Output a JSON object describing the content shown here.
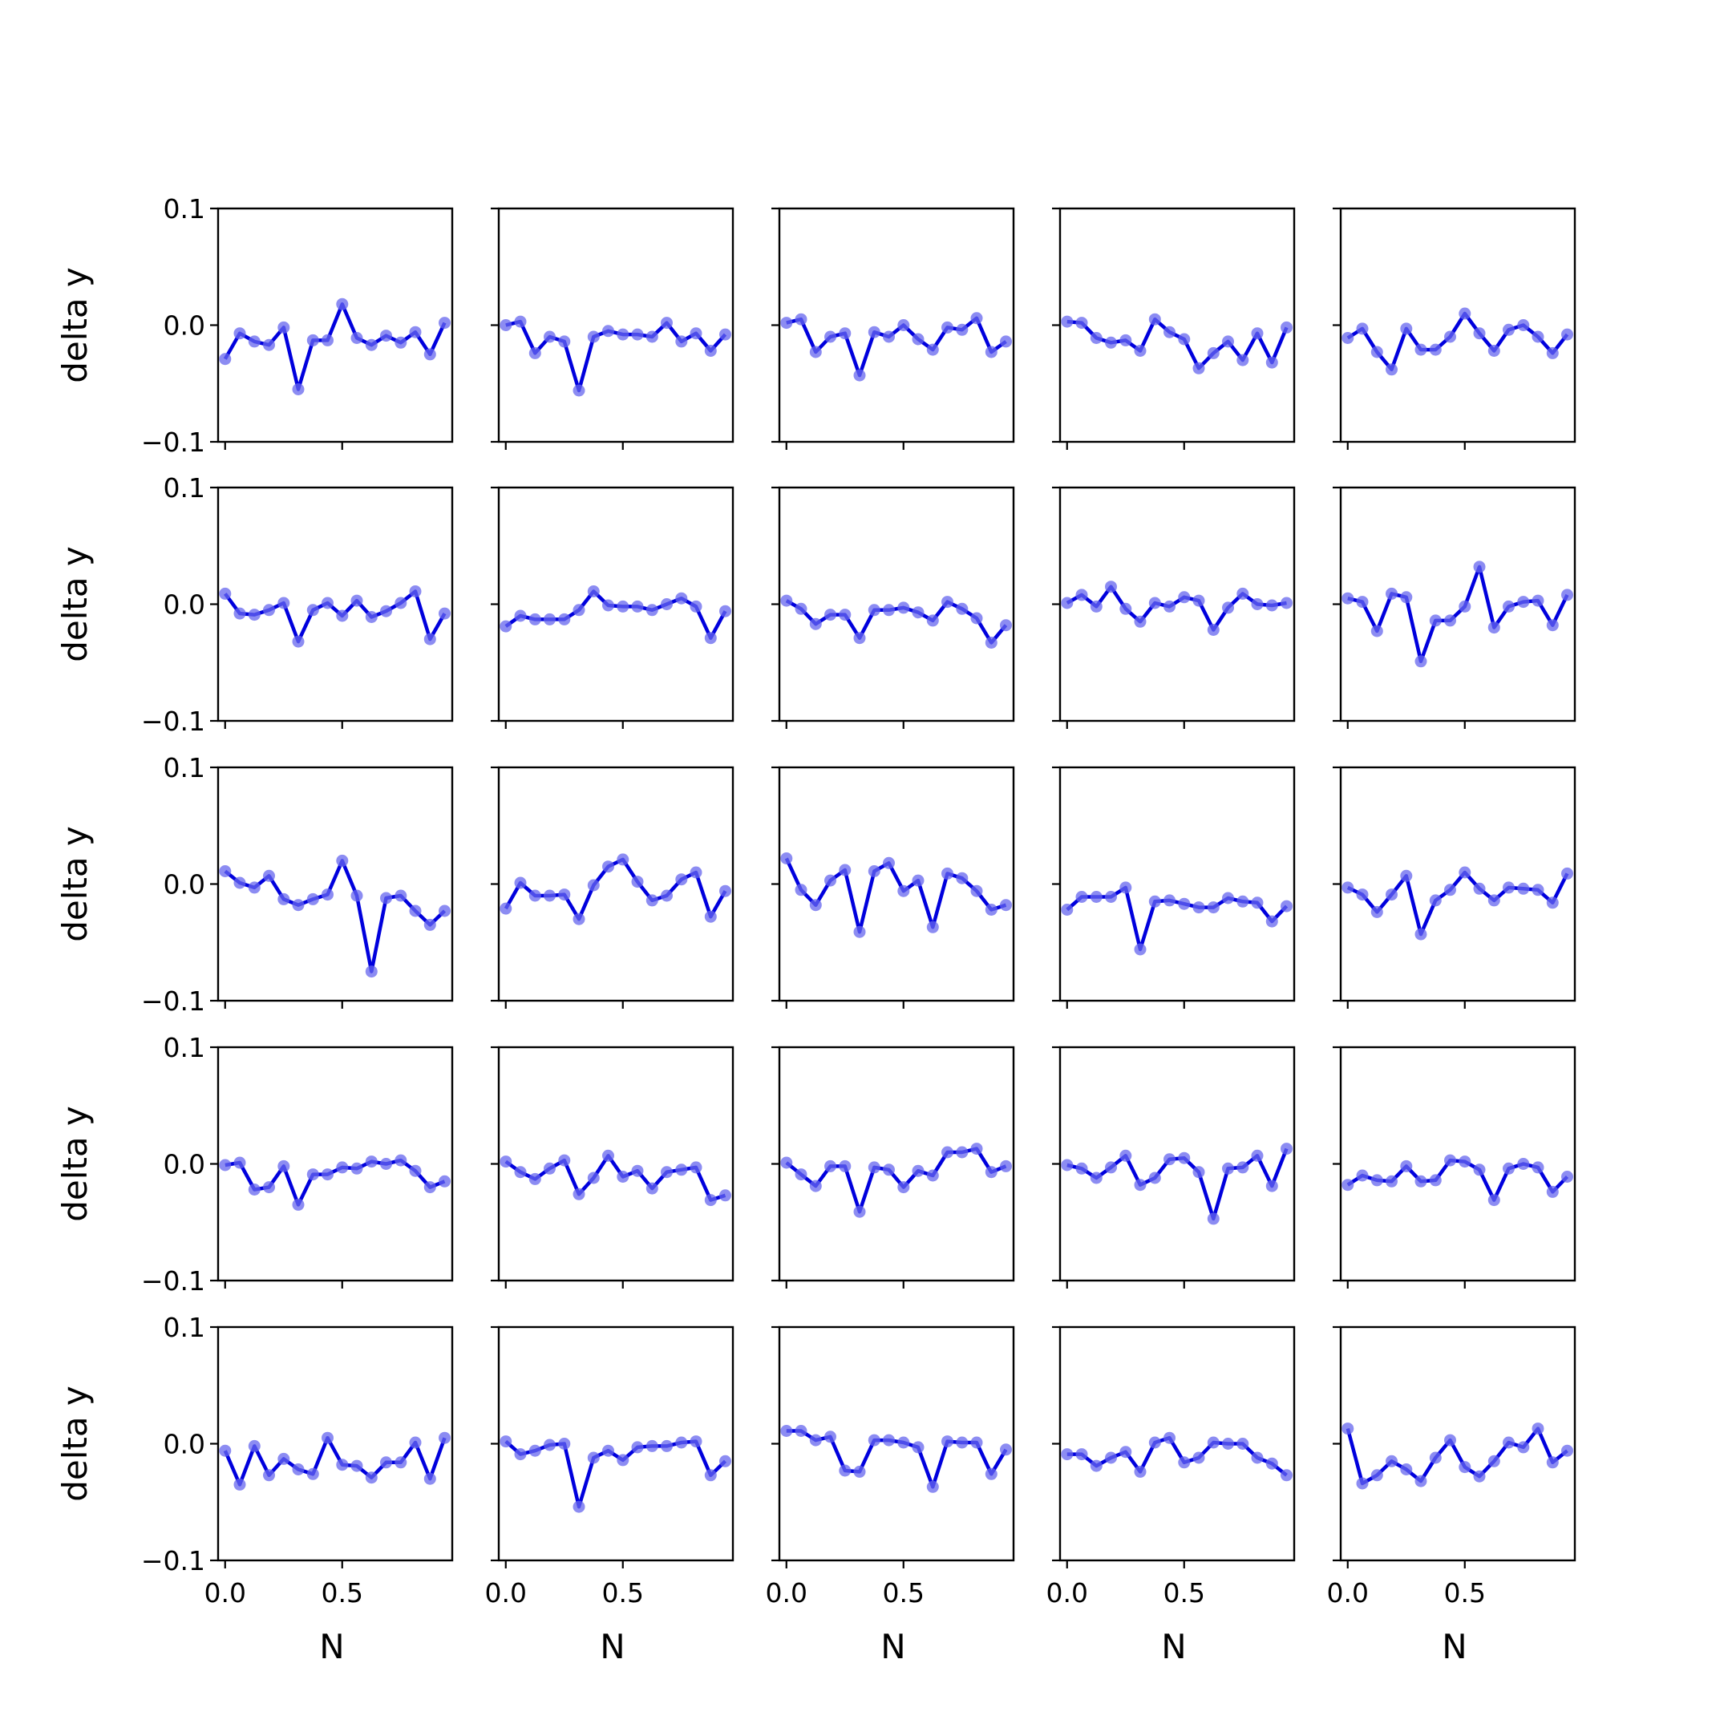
{
  "chart_data": {
    "type": "line",
    "layout": {
      "rows": 5,
      "cols": 5
    },
    "colors": {
      "line": "#0000dd",
      "marker": "#6666ee"
    },
    "markers": true,
    "grid": false,
    "xlabel": "N",
    "ylabel": "delta y",
    "xlim": [
      -0.03,
      0.97
    ],
    "ylim": [
      -0.1,
      0.1
    ],
    "xticks": [
      0.0,
      0.5
    ],
    "xtick_labels": [
      "0.0",
      "0.5"
    ],
    "yticks": [
      0.1,
      0.0,
      -0.1
    ],
    "ytick_labels": [
      "0.1",
      "0.0",
      "−0.1"
    ],
    "x": [
      0.0,
      0.0625,
      0.125,
      0.1875,
      0.25,
      0.3125,
      0.375,
      0.4375,
      0.5,
      0.5625,
      0.625,
      0.6875,
      0.75,
      0.8125,
      0.875,
      0.9375
    ],
    "panels": [
      {
        "values": [
          -0.029,
          -0.007,
          -0.014,
          -0.017,
          -0.002,
          -0.055,
          -0.013,
          -0.013,
          0.018,
          -0.011,
          -0.017,
          -0.009,
          -0.015,
          -0.006,
          -0.025,
          0.002
        ]
      },
      {
        "values": [
          0.0,
          0.003,
          -0.024,
          -0.01,
          -0.014,
          -0.056,
          -0.01,
          -0.005,
          -0.008,
          -0.008,
          -0.01,
          0.002,
          -0.014,
          -0.007,
          -0.022,
          -0.008
        ]
      },
      {
        "values": [
          0.002,
          0.005,
          -0.023,
          -0.01,
          -0.007,
          -0.043,
          -0.006,
          -0.01,
          0.0,
          -0.012,
          -0.021,
          -0.002,
          -0.004,
          0.006,
          -0.023,
          -0.014
        ]
      },
      {
        "values": [
          0.003,
          0.002,
          -0.011,
          -0.015,
          -0.013,
          -0.022,
          0.005,
          -0.006,
          -0.012,
          -0.037,
          -0.024,
          -0.014,
          -0.03,
          -0.007,
          -0.032,
          -0.002
        ]
      },
      {
        "values": [
          -0.011,
          -0.003,
          -0.023,
          -0.038,
          -0.003,
          -0.021,
          -0.021,
          -0.01,
          0.01,
          -0.007,
          -0.022,
          -0.004,
          0.0,
          -0.01,
          -0.024,
          -0.008
        ]
      },
      {
        "values": [
          0.009,
          -0.008,
          -0.009,
          -0.005,
          0.001,
          -0.032,
          -0.005,
          0.001,
          -0.01,
          0.003,
          -0.011,
          -0.006,
          0.001,
          0.011,
          -0.03,
          -0.008
        ]
      },
      {
        "values": [
          -0.019,
          -0.01,
          -0.013,
          -0.013,
          -0.013,
          -0.005,
          0.011,
          -0.001,
          -0.002,
          -0.002,
          -0.005,
          0.0,
          0.005,
          -0.002,
          -0.029,
          -0.006
        ]
      },
      {
        "values": [
          0.003,
          -0.004,
          -0.017,
          -0.009,
          -0.009,
          -0.029,
          -0.005,
          -0.005,
          -0.003,
          -0.007,
          -0.014,
          0.002,
          -0.004,
          -0.012,
          -0.033,
          -0.018
        ]
      },
      {
        "values": [
          0.001,
          0.008,
          -0.002,
          0.015,
          -0.004,
          -0.015,
          0.001,
          -0.002,
          0.006,
          0.003,
          -0.022,
          -0.003,
          0.009,
          0.0,
          -0.001,
          0.001
        ]
      },
      {
        "values": [
          0.005,
          0.002,
          -0.023,
          0.009,
          0.006,
          -0.049,
          -0.014,
          -0.014,
          -0.002,
          0.032,
          -0.02,
          -0.002,
          0.002,
          0.003,
          -0.018,
          0.008
        ]
      },
      {
        "values": [
          0.011,
          0.001,
          -0.003,
          0.007,
          -0.013,
          -0.018,
          -0.013,
          -0.009,
          0.02,
          -0.01,
          -0.075,
          -0.012,
          -0.01,
          -0.023,
          -0.035,
          -0.023
        ]
      },
      {
        "values": [
          -0.021,
          0.001,
          -0.01,
          -0.01,
          -0.009,
          -0.03,
          -0.001,
          0.015,
          0.021,
          0.002,
          -0.014,
          -0.01,
          0.004,
          0.01,
          -0.028,
          -0.006
        ]
      },
      {
        "values": [
          0.022,
          -0.005,
          -0.018,
          0.003,
          0.012,
          -0.041,
          0.011,
          0.018,
          -0.006,
          0.003,
          -0.037,
          0.009,
          0.005,
          -0.006,
          -0.022,
          -0.018
        ]
      },
      {
        "values": [
          -0.022,
          -0.011,
          -0.011,
          -0.011,
          -0.003,
          -0.056,
          -0.015,
          -0.014,
          -0.017,
          -0.02,
          -0.02,
          -0.012,
          -0.015,
          -0.016,
          -0.032,
          -0.019
        ]
      },
      {
        "values": [
          -0.003,
          -0.009,
          -0.024,
          -0.009,
          0.007,
          -0.043,
          -0.014,
          -0.005,
          0.01,
          -0.004,
          -0.014,
          -0.003,
          -0.004,
          -0.005,
          -0.016,
          0.009
        ]
      },
      {
        "values": [
          -0.001,
          0.001,
          -0.022,
          -0.02,
          -0.002,
          -0.035,
          -0.009,
          -0.009,
          -0.003,
          -0.004,
          0.002,
          0.0,
          0.003,
          -0.006,
          -0.02,
          -0.015
        ]
      },
      {
        "values": [
          0.002,
          -0.007,
          -0.013,
          -0.004,
          0.003,
          -0.026,
          -0.012,
          0.007,
          -0.011,
          -0.006,
          -0.021,
          -0.007,
          -0.005,
          -0.003,
          -0.031,
          -0.027
        ]
      },
      {
        "values": [
          0.001,
          -0.009,
          -0.019,
          -0.002,
          -0.002,
          -0.041,
          -0.003,
          -0.005,
          -0.02,
          -0.006,
          -0.01,
          0.01,
          0.01,
          0.013,
          -0.007,
          -0.002
        ]
      },
      {
        "values": [
          -0.001,
          -0.004,
          -0.012,
          -0.003,
          0.007,
          -0.018,
          -0.012,
          0.004,
          0.005,
          -0.007,
          -0.047,
          -0.004,
          -0.003,
          0.007,
          -0.019,
          0.013
        ]
      },
      {
        "values": [
          -0.018,
          -0.01,
          -0.014,
          -0.015,
          -0.002,
          -0.015,
          -0.014,
          0.003,
          0.002,
          -0.005,
          -0.031,
          -0.004,
          0.0,
          -0.003,
          -0.024,
          -0.011
        ]
      },
      {
        "values": [
          -0.006,
          -0.035,
          -0.002,
          -0.027,
          -0.013,
          -0.022,
          -0.026,
          0.005,
          -0.018,
          -0.019,
          -0.029,
          -0.016,
          -0.016,
          0.001,
          -0.03,
          0.005
        ]
      },
      {
        "values": [
          0.002,
          -0.009,
          -0.006,
          -0.001,
          0.0,
          -0.054,
          -0.012,
          -0.006,
          -0.014,
          -0.003,
          -0.002,
          -0.002,
          0.001,
          0.002,
          -0.027,
          -0.015
        ]
      },
      {
        "values": [
          0.011,
          0.011,
          0.003,
          0.006,
          -0.023,
          -0.024,
          0.003,
          0.003,
          0.001,
          -0.003,
          -0.037,
          0.002,
          0.001,
          0.001,
          -0.026,
          -0.005
        ]
      },
      {
        "values": [
          -0.009,
          -0.009,
          -0.019,
          -0.012,
          -0.007,
          -0.024,
          0.001,
          0.005,
          -0.016,
          -0.012,
          0.001,
          0.0,
          0.0,
          -0.012,
          -0.017,
          -0.027
        ]
      },
      {
        "values": [
          0.013,
          -0.034,
          -0.027,
          -0.015,
          -0.022,
          -0.032,
          -0.012,
          0.003,
          -0.02,
          -0.028,
          -0.015,
          0.001,
          -0.003,
          0.013,
          -0.016,
          -0.006
        ]
      }
    ]
  }
}
